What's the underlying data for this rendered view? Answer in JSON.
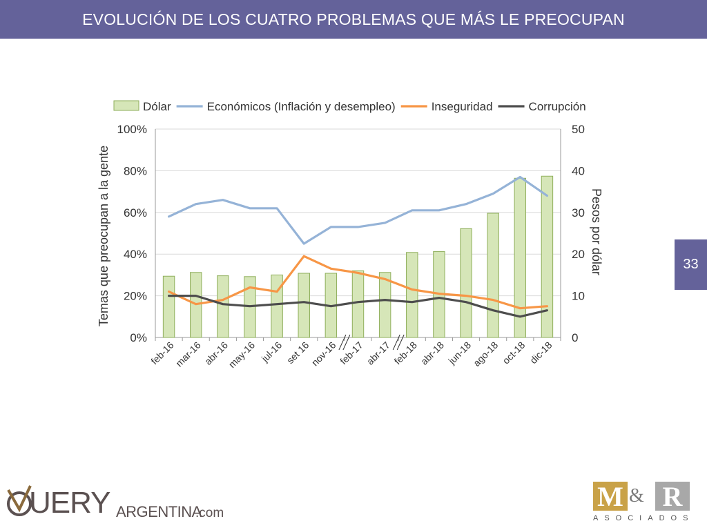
{
  "header": {
    "title": "EVOLUCIÓN DE LOS CUATRO PROBLEMAS QUE MÁS LE PREOCUPAN"
  },
  "page_number": "33",
  "logos": {
    "query_main": "UERY",
    "query_sub": "ARGENTINA",
    "query_suffix": ".com",
    "mr_m": "M",
    "mr_amp": "&",
    "mr_r": "R",
    "mr_sub": "ASOCIADOS"
  },
  "colors": {
    "header_bg": "#64629a",
    "dolar_fill": "#d6e6b8",
    "dolar_stroke": "#8eae5a",
    "economicos": "#95b3d7",
    "inseguridad": "#f79646",
    "corrupcion": "#4d4d4d"
  },
  "chart_data": {
    "type": "bar",
    "categories": [
      "feb-16",
      "mar-16",
      "abr-16",
      "may-16",
      "jul-16",
      "set 16",
      "nov-16",
      "feb-17",
      "abr-17",
      "feb-18",
      "abr-18",
      "jun-18",
      "ago-18",
      "oct-18",
      "dic-18"
    ],
    "ylabel": "Temas que preocupan a la gente",
    "y2label": "Pesos por dólar",
    "ylim": [
      0,
      1
    ],
    "y2lim": [
      0,
      50
    ],
    "yticks": [
      "0%",
      "20%",
      "40%",
      "60%",
      "80%",
      "100%"
    ],
    "y2ticks": [
      "0",
      "10",
      "20",
      "30",
      "40",
      "50"
    ],
    "legend_position": "top",
    "axis_breaks_after": [
      "nov-16",
      "abr-17"
    ],
    "series": [
      {
        "name": "Dólar",
        "type": "bar",
        "axis": "right",
        "values": [
          14.7,
          15.6,
          14.8,
          14.6,
          15.0,
          15.4,
          15.4,
          16.0,
          15.6,
          20.4,
          20.6,
          26.1,
          29.8,
          38.2,
          38.7
        ]
      },
      {
        "name": "Económicos (Inflación y desempleo)",
        "type": "line",
        "axis": "left",
        "values": [
          0.58,
          0.64,
          0.66,
          0.62,
          0.62,
          0.45,
          0.53,
          0.53,
          0.55,
          0.61,
          0.61,
          0.64,
          0.69,
          0.77,
          0.68
        ]
      },
      {
        "name": "Inseguridad",
        "type": "line",
        "axis": "left",
        "values": [
          0.22,
          0.16,
          0.18,
          0.24,
          0.22,
          0.39,
          0.33,
          0.31,
          0.28,
          0.23,
          0.21,
          0.2,
          0.18,
          0.14,
          0.15
        ]
      },
      {
        "name": "Corrupción",
        "type": "line",
        "axis": "left",
        "values": [
          0.2,
          0.2,
          0.16,
          0.15,
          0.16,
          0.17,
          0.15,
          0.17,
          0.18,
          0.17,
          0.19,
          0.17,
          0.13,
          0.1,
          0.13
        ]
      }
    ]
  }
}
